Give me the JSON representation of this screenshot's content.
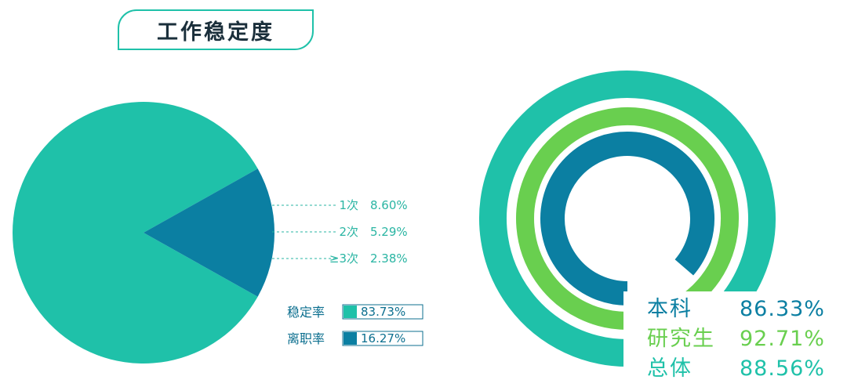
{
  "title": "工作稳定度",
  "colors": {
    "stable": "#1fc1a9",
    "leave": "#0b7fa2",
    "ring_overall": "#1fc1a9",
    "ring_graduate": "#69cf4f",
    "ring_undergrad": "#0b7fa2"
  },
  "chart_data": [
    {
      "type": "pie",
      "slices": [
        {
          "label": "稳定率",
          "value": 83.73,
          "display": "83.73%"
        },
        {
          "label": "离职率",
          "value": 16.27,
          "display": "16.27%"
        }
      ],
      "breakdown": [
        {
          "label": "1次",
          "value": 8.6,
          "display": "8.60%"
        },
        {
          "label": "2次",
          "value": 5.29,
          "display": "5.29%"
        },
        {
          "label": "≥3次",
          "value": 2.38,
          "display": "2.38%"
        }
      ]
    },
    {
      "type": "radial_bar",
      "rings": [
        {
          "label": "本科",
          "value": 86.33,
          "display": "86.33%"
        },
        {
          "label": "研究生",
          "value": 92.71,
          "display": "92.71%"
        },
        {
          "label": "总体",
          "value": 88.56,
          "display": "88.56%"
        }
      ]
    }
  ]
}
